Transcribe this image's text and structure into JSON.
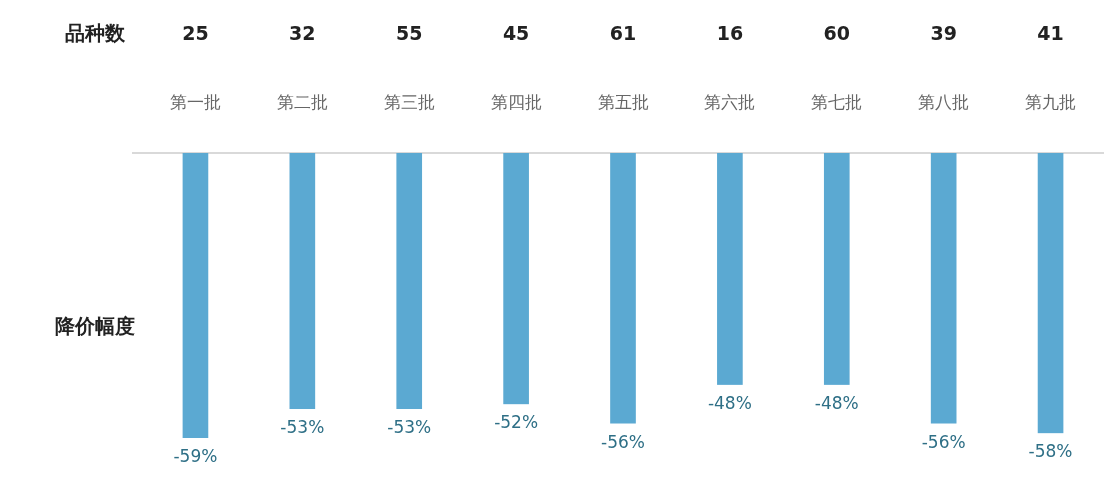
{
  "chart_data": {
    "type": "bar",
    "ylabel": "降价幅度",
    "categories": [
      "第一批",
      "第二批",
      "第三批",
      "第四批",
      "第五批",
      "第六批",
      "第七批",
      "第八批",
      "第九批"
    ],
    "values": [
      -59,
      -53,
      -53,
      -52,
      -56,
      -48,
      -48,
      -56,
      -58
    ],
    "value_labels": [
      "-59%",
      "-53%",
      "-53%",
      "-52%",
      "-56%",
      "-48%",
      "-48%",
      "-56%",
      "-58%"
    ],
    "color": "#5ba9d2",
    "annotations": [
      "品种数",
      "25",
      "32",
      "55",
      "45",
      "61",
      "16",
      "60",
      "39",
      "41"
    ]
  }
}
